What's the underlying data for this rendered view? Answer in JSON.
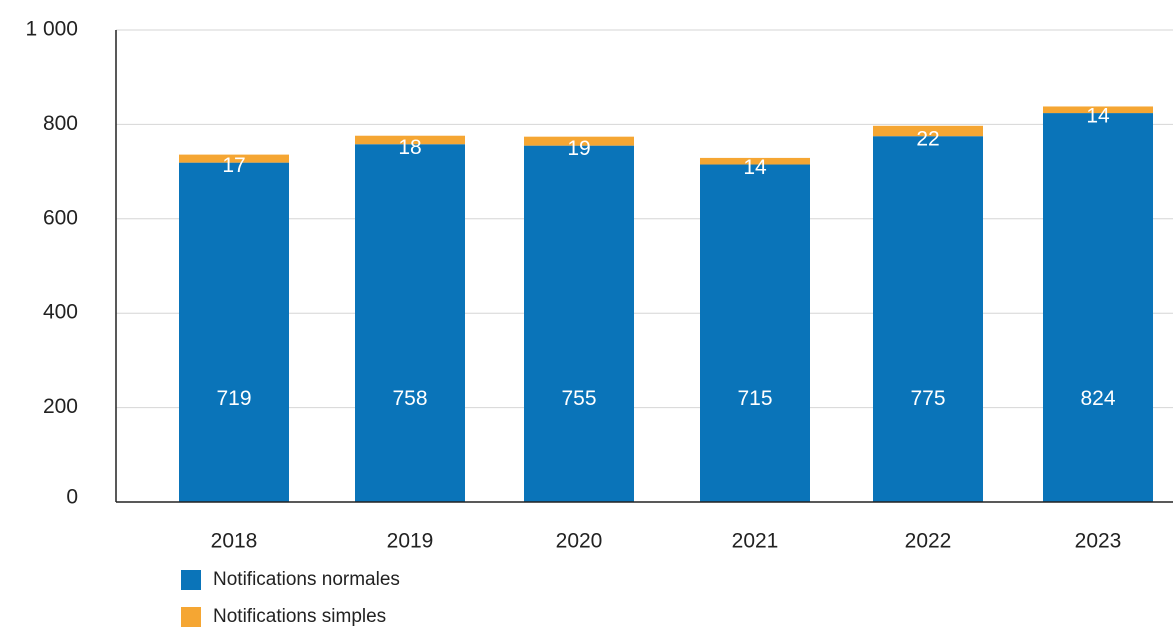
{
  "chart_data": {
    "type": "bar",
    "stacked": true,
    "title": "",
    "xlabel": "",
    "ylabel": "",
    "categories": [
      "2018",
      "2019",
      "2020",
      "2021",
      "2022",
      "2023"
    ],
    "series": [
      {
        "name": "Notifications normales",
        "color": "#0a74b9",
        "values": [
          719,
          758,
          755,
          715,
          775,
          824
        ],
        "labels": [
          "719",
          "758",
          "755",
          "715",
          "775",
          "824"
        ]
      },
      {
        "name": "Notifications simples",
        "color": "#f5a633",
        "values": [
          17,
          18,
          19,
          14,
          22,
          14
        ],
        "labels": [
          "17",
          "18",
          "19",
          "14",
          "22",
          "14"
        ]
      }
    ],
    "ylim": [
      0,
      1000
    ],
    "yticks": [
      0,
      200,
      400,
      600,
      800,
      1000
    ],
    "ytick_labels": [
      "0",
      "200",
      "400",
      "600",
      "800",
      "1 000"
    ],
    "grid": true,
    "legend_position": "bottom-left"
  }
}
